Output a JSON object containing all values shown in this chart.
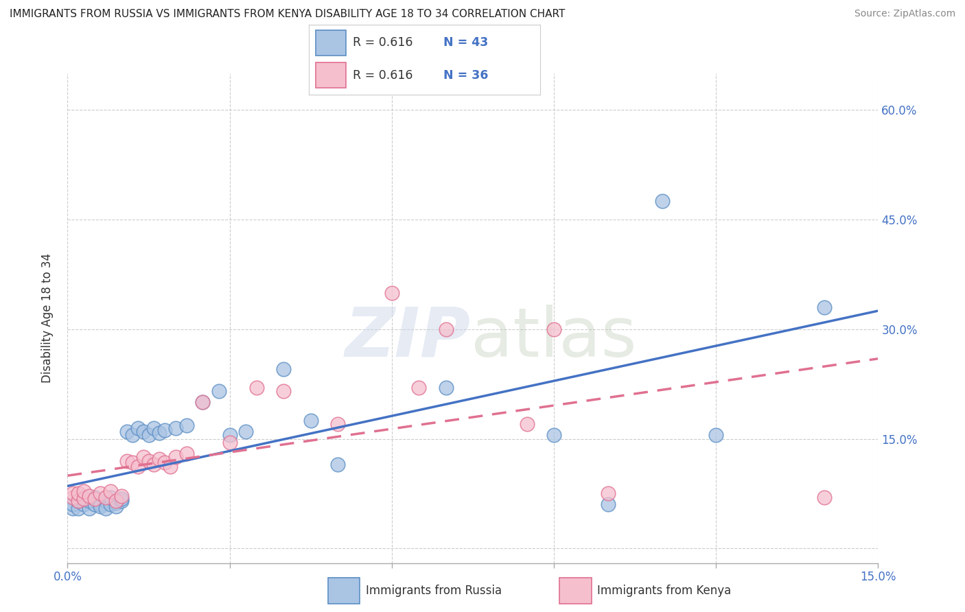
{
  "title": "IMMIGRANTS FROM RUSSIA VS IMMIGRANTS FROM KENYA DISABILITY AGE 18 TO 34 CORRELATION CHART",
  "source": "Source: ZipAtlas.com",
  "ylabel": "Disability Age 18 to 34",
  "xlim": [
    0.0,
    0.15
  ],
  "ylim": [
    -0.02,
    0.65
  ],
  "xticks": [
    0.0,
    0.03,
    0.06,
    0.09,
    0.12,
    0.15
  ],
  "xticklabels": [
    "0.0%",
    "",
    "",
    "",
    "",
    "15.0%"
  ],
  "yticks": [
    0.0,
    0.15,
    0.3,
    0.45,
    0.6
  ],
  "yticklabels": [
    "",
    "15.0%",
    "30.0%",
    "45.0%",
    "60.0%"
  ],
  "russia_color": "#aac4e4",
  "russia_edge_color": "#5b8ec4",
  "russia_line_color": "#4472c4",
  "kenya_color": "#f5bfce",
  "kenya_edge_color": "#e07090",
  "kenya_line_color": "#e07090",
  "russia_R": "0.616",
  "russia_N": "43",
  "kenya_R": "0.616",
  "kenya_N": "36",
  "russia_x": [
    0.001,
    0.001,
    0.002,
    0.002,
    0.003,
    0.003,
    0.004,
    0.004,
    0.005,
    0.005,
    0.006,
    0.006,
    0.007,
    0.007,
    0.008,
    0.008,
    0.009,
    0.009,
    0.01,
    0.01,
    0.011,
    0.012,
    0.013,
    0.014,
    0.015,
    0.016,
    0.017,
    0.018,
    0.02,
    0.022,
    0.025,
    0.028,
    0.03,
    0.033,
    0.04,
    0.045,
    0.05,
    0.07,
    0.09,
    0.1,
    0.11,
    0.12,
    0.14
  ],
  "russia_y": [
    0.055,
    0.06,
    0.055,
    0.065,
    0.06,
    0.07,
    0.055,
    0.065,
    0.06,
    0.07,
    0.06,
    0.058,
    0.065,
    0.055,
    0.06,
    0.07,
    0.062,
    0.058,
    0.065,
    0.068,
    0.16,
    0.155,
    0.165,
    0.16,
    0.155,
    0.165,
    0.158,
    0.162,
    0.165,
    0.168,
    0.2,
    0.215,
    0.155,
    0.16,
    0.245,
    0.175,
    0.115,
    0.22,
    0.155,
    0.06,
    0.475,
    0.155,
    0.33
  ],
  "kenya_x": [
    0.001,
    0.001,
    0.002,
    0.002,
    0.003,
    0.003,
    0.004,
    0.005,
    0.006,
    0.007,
    0.008,
    0.009,
    0.01,
    0.011,
    0.012,
    0.013,
    0.014,
    0.015,
    0.016,
    0.017,
    0.018,
    0.019,
    0.02,
    0.022,
    0.025,
    0.03,
    0.035,
    0.04,
    0.05,
    0.06,
    0.065,
    0.07,
    0.085,
    0.09,
    0.1,
    0.14
  ],
  "kenya_y": [
    0.07,
    0.075,
    0.065,
    0.075,
    0.068,
    0.078,
    0.072,
    0.068,
    0.075,
    0.07,
    0.078,
    0.065,
    0.072,
    0.12,
    0.118,
    0.112,
    0.125,
    0.12,
    0.115,
    0.122,
    0.118,
    0.112,
    0.125,
    0.13,
    0.2,
    0.145,
    0.22,
    0.215,
    0.17,
    0.35,
    0.22,
    0.3,
    0.17,
    0.3,
    0.075,
    0.07
  ]
}
